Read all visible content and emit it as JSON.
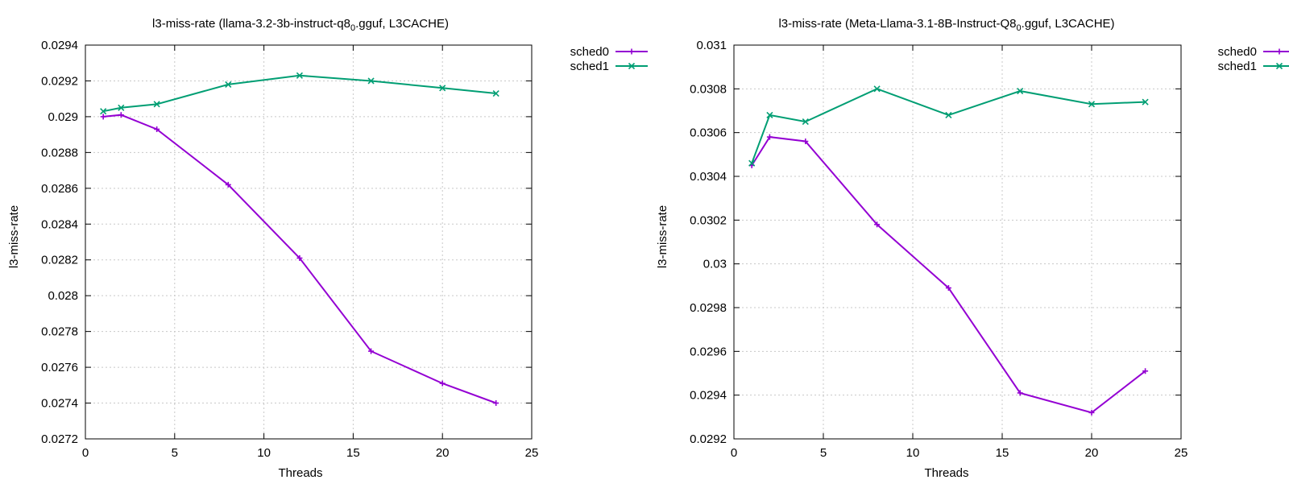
{
  "chart_data": [
    {
      "type": "line",
      "title_main": "l3-miss-rate (llama-3.2-3b-instruct-q8",
      "title_sub": "0",
      "title_rest": ".gguf, L3CACHE)",
      "xlabel": "Threads",
      "ylabel": "l3-miss-rate",
      "xlim": [
        0,
        25
      ],
      "ylim": [
        0.0272,
        0.0294
      ],
      "xticks": [
        "0",
        "5",
        "10",
        "15",
        "20",
        "25"
      ],
      "xtick_values": [
        0,
        5,
        10,
        15,
        20,
        25
      ],
      "yticks": [
        "0.0272",
        "0.0274",
        "0.0276",
        "0.0278",
        "0.028",
        "0.0282",
        "0.0284",
        "0.0286",
        "0.0288",
        "0.029",
        "0.0292",
        "0.0294"
      ],
      "ytick_values": [
        0.0272,
        0.0274,
        0.0276,
        0.0278,
        0.028,
        0.0282,
        0.0284,
        0.0286,
        0.0288,
        0.029,
        0.0292,
        0.0294
      ],
      "grid": true,
      "legend_position": "outside-top-right",
      "x": [
        1,
        2,
        4,
        8,
        12,
        16,
        20,
        23
      ],
      "series": [
        {
          "name": "sched0",
          "color": "#9400d3",
          "marker": "plus",
          "values": [
            0.029,
            0.02901,
            0.02893,
            0.02862,
            0.02821,
            0.02769,
            0.02751,
            0.0274
          ]
        },
        {
          "name": "sched1",
          "color": "#009e73",
          "marker": "cross",
          "values": [
            0.02903,
            0.02905,
            0.02907,
            0.02918,
            0.02923,
            0.0292,
            0.02916,
            0.02913
          ]
        }
      ]
    },
    {
      "type": "line",
      "title_main": "l3-miss-rate (Meta-Llama-3.1-8B-Instruct-Q8",
      "title_sub": "0",
      "title_rest": ".gguf, L3CACHE)",
      "xlabel": "Threads",
      "ylabel": "l3-miss-rate",
      "xlim": [
        0,
        25
      ],
      "ylim": [
        0.0292,
        0.031
      ],
      "xticks": [
        "0",
        "5",
        "10",
        "15",
        "20",
        "25"
      ],
      "xtick_values": [
        0,
        5,
        10,
        15,
        20,
        25
      ],
      "yticks": [
        "0.0292",
        "0.0294",
        "0.0296",
        "0.0298",
        "0.03",
        "0.0302",
        "0.0304",
        "0.0306",
        "0.0308",
        "0.031"
      ],
      "ytick_values": [
        0.0292,
        0.0294,
        0.0296,
        0.0298,
        0.03,
        0.0302,
        0.0304,
        0.0306,
        0.0308,
        0.031
      ],
      "grid": true,
      "legend_position": "outside-top-right",
      "x": [
        1,
        2,
        4,
        8,
        12,
        16,
        20,
        23
      ],
      "series": [
        {
          "name": "sched0",
          "color": "#9400d3",
          "marker": "plus",
          "values": [
            0.03045,
            0.03058,
            0.03056,
            0.03018,
            0.02989,
            0.02941,
            0.02932,
            0.02951
          ]
        },
        {
          "name": "sched1",
          "color": "#009e73",
          "marker": "cross",
          "values": [
            0.03046,
            0.03068,
            0.03065,
            0.0308,
            0.03068,
            0.03079,
            0.03073,
            0.03074
          ]
        }
      ]
    }
  ]
}
